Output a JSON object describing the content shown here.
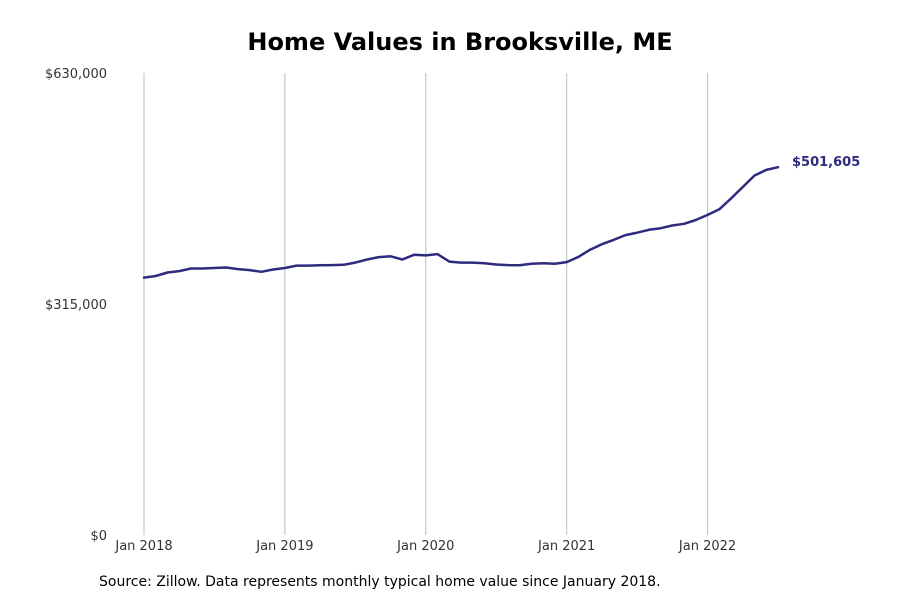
{
  "chart_data": {
    "type": "line",
    "title": "Home Values in Brooksville, ME",
    "xlabel": "",
    "ylabel": "",
    "ylim": [
      0,
      630000
    ],
    "xlim": [
      "2018-01",
      "2022-08"
    ],
    "y_ticks": [
      {
        "value": 0,
        "label": "$0"
      },
      {
        "value": 315000,
        "label": "$315,000"
      },
      {
        "value": 630000,
        "label": "$630,000"
      }
    ],
    "x_ticks": [
      {
        "date": "2018-01",
        "label": "Jan 2018"
      },
      {
        "date": "2019-01",
        "label": "Jan 2019"
      },
      {
        "date": "2020-01",
        "label": "Jan 2020"
      },
      {
        "date": "2021-01",
        "label": "Jan 2021"
      },
      {
        "date": "2022-01",
        "label": "Jan 2022"
      }
    ],
    "grid": "vertical",
    "line_color": "#2e2a7e",
    "end_label": "$501,605",
    "series": [
      {
        "x": [
          "2018-01",
          "2018-02",
          "2018-03",
          "2018-04",
          "2018-05",
          "2018-06",
          "2018-07",
          "2018-08",
          "2018-09",
          "2018-10",
          "2018-11",
          "2018-12",
          "2019-01",
          "2019-02",
          "2019-03",
          "2019-04",
          "2019-05",
          "2019-06",
          "2019-07",
          "2019-08",
          "2019-09",
          "2019-10",
          "2019-11",
          "2019-12",
          "2020-01",
          "2020-02",
          "2020-03",
          "2020-04",
          "2020-05",
          "2020-06",
          "2020-07",
          "2020-08",
          "2020-09",
          "2020-10",
          "2020-11",
          "2020-12",
          "2021-01",
          "2021-02",
          "2021-03",
          "2021-04",
          "2021-05",
          "2021-06",
          "2021-07",
          "2021-08",
          "2021-09",
          "2021-10",
          "2021-11",
          "2021-12",
          "2022-01",
          "2022-02",
          "2022-03",
          "2022-04",
          "2022-05",
          "2022-06",
          "2022-07"
        ],
        "values": [
          351000,
          353200,
          358000,
          359800,
          363400,
          363400,
          364100,
          364800,
          362600,
          361200,
          358900,
          362000,
          364100,
          367400,
          367400,
          367900,
          368100,
          368500,
          371400,
          375700,
          378900,
          380000,
          375700,
          382100,
          381300,
          383000,
          372800,
          371500,
          371400,
          370600,
          368900,
          368000,
          367900,
          369900,
          370600,
          369900,
          372100,
          379200,
          389100,
          396600,
          402400,
          408900,
          412200,
          416200,
          418400,
          422000,
          424300,
          429600,
          436500,
          444200,
          458800,
          474600,
          490200,
          497800,
          501605
        ]
      }
    ]
  },
  "footer": {
    "source": "Source: Zillow. Data represents monthly typical home value since January 2018."
  }
}
